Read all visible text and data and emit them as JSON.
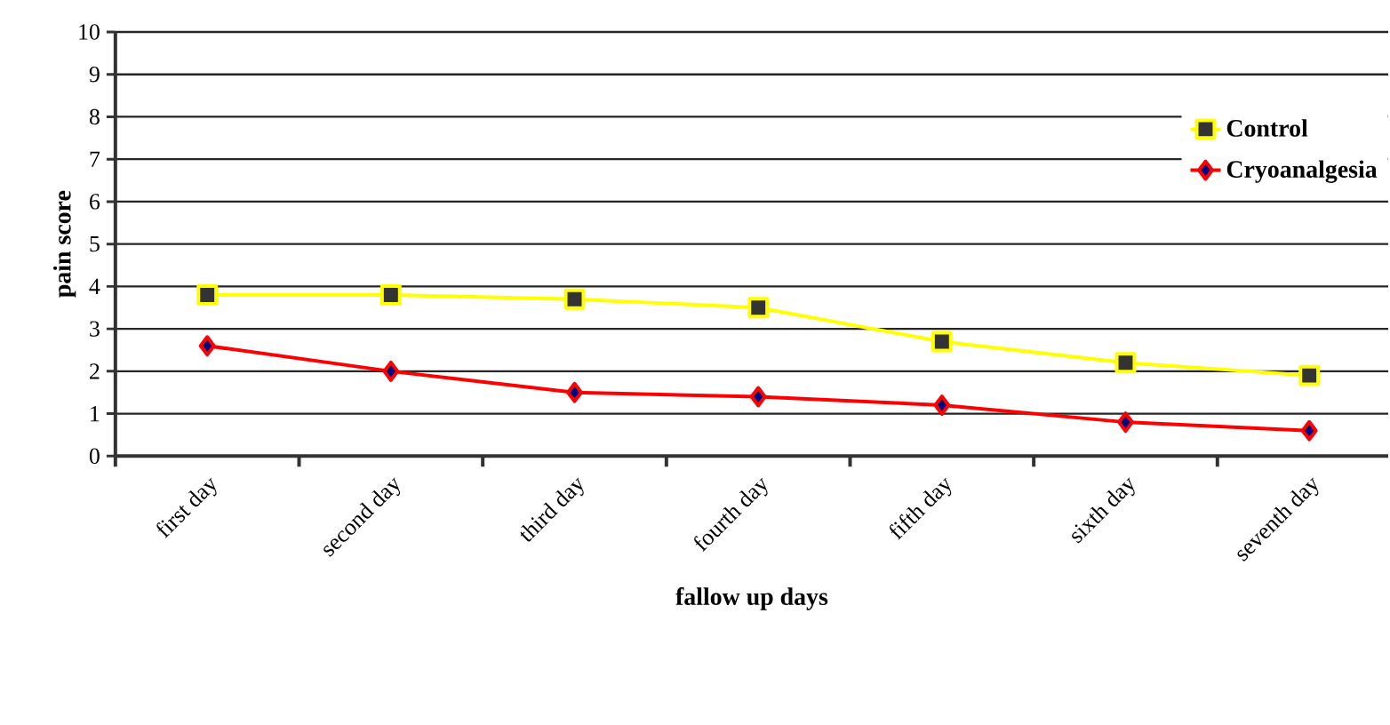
{
  "chart_data": {
    "type": "line",
    "xlabel": "fallow up days",
    "ylabel": "pain score",
    "categories": [
      "first day",
      "second day",
      "third day",
      "fourth day",
      "fifth day",
      "sixth day",
      "seventh day"
    ],
    "series": [
      {
        "name": "Control",
        "color": "#ffff00",
        "marker": "square",
        "values": [
          3.8,
          3.8,
          3.7,
          3.5,
          2.7,
          2.2,
          1.9
        ]
      },
      {
        "name": "Cryoanalgesia",
        "color": "#ff0000",
        "marker": "diamond",
        "values": [
          2.6,
          2.0,
          1.5,
          1.4,
          1.2,
          0.8,
          0.6
        ]
      }
    ],
    "ylim": [
      0,
      10
    ],
    "yticks": [
      0,
      1,
      2,
      3,
      4,
      5,
      6,
      7,
      8,
      9,
      10
    ],
    "grid": "y",
    "legend": "top right",
    "line_style": "solid"
  }
}
